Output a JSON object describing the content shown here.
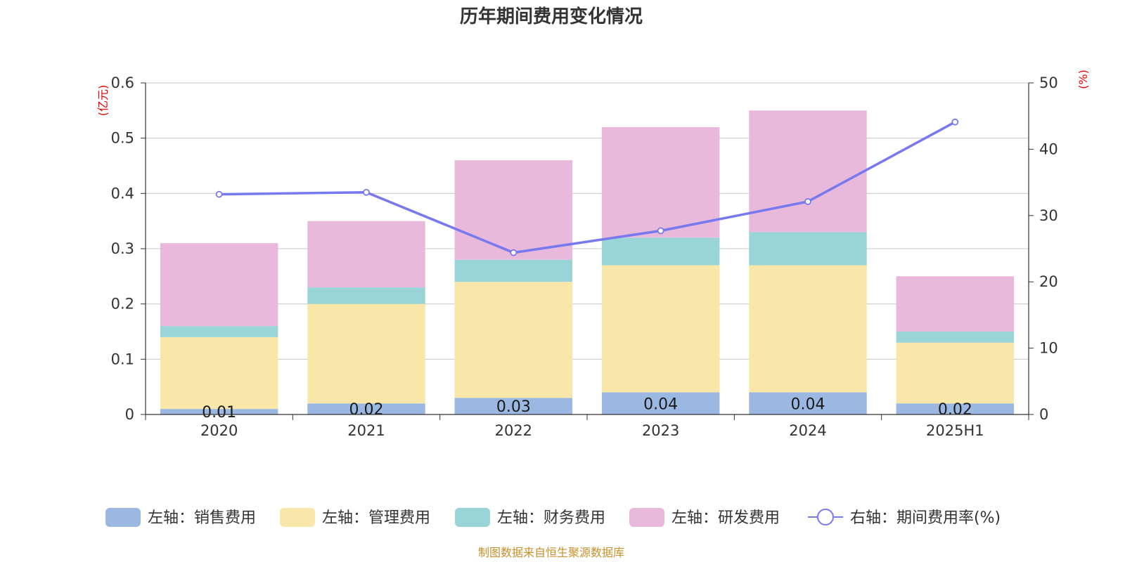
{
  "chart_data": {
    "type": "bar",
    "title": "历年期间费用变化情况",
    "categories": [
      "2020",
      "2021",
      "2022",
      "2023",
      "2024",
      "2025H1"
    ],
    "series": [
      {
        "name": "左轴：销售费用",
        "axis": "left",
        "kind": "bar",
        "color": "#9bb8e3",
        "values": [
          0.01,
          0.02,
          0.03,
          0.04,
          0.04,
          0.02
        ],
        "labels": [
          "0.01",
          "0.02",
          "0.03",
          "0.04",
          "0.04",
          "0.02"
        ]
      },
      {
        "name": "左轴：管理费用",
        "axis": "left",
        "kind": "bar",
        "color": "#f8e7a8",
        "values": [
          0.13,
          0.18,
          0.21,
          0.23,
          0.23,
          0.11
        ]
      },
      {
        "name": "左轴：财务费用",
        "axis": "left",
        "kind": "bar",
        "color": "#99d5d6",
        "values": [
          0.02,
          0.03,
          0.04,
          0.05,
          0.06,
          0.02
        ]
      },
      {
        "name": "左轴：研发费用",
        "axis": "left",
        "kind": "bar",
        "color": "#e8b9da",
        "values": [
          0.15,
          0.12,
          0.18,
          0.2,
          0.22,
          0.1
        ]
      },
      {
        "name": "右轴：期间费用率(%)",
        "axis": "right",
        "kind": "line",
        "color": "#7879ef",
        "values": [
          33.2,
          33.5,
          24.4,
          27.7,
          32.1,
          44.1
        ]
      }
    ],
    "left_axis": {
      "unit": "(亿元)",
      "ylim": [
        0,
        0.6
      ],
      "ticks": [
        "0",
        "0.1",
        "0.2",
        "0.3",
        "0.4",
        "0.5",
        "0.6"
      ]
    },
    "right_axis": {
      "unit": "(%)",
      "ylim": [
        0,
        50
      ],
      "ticks": [
        "0",
        "10",
        "20",
        "30",
        "40",
        "50"
      ]
    },
    "grid": true,
    "legend_position": "bottom",
    "source": "制图数据来自恒生聚源数据库"
  }
}
